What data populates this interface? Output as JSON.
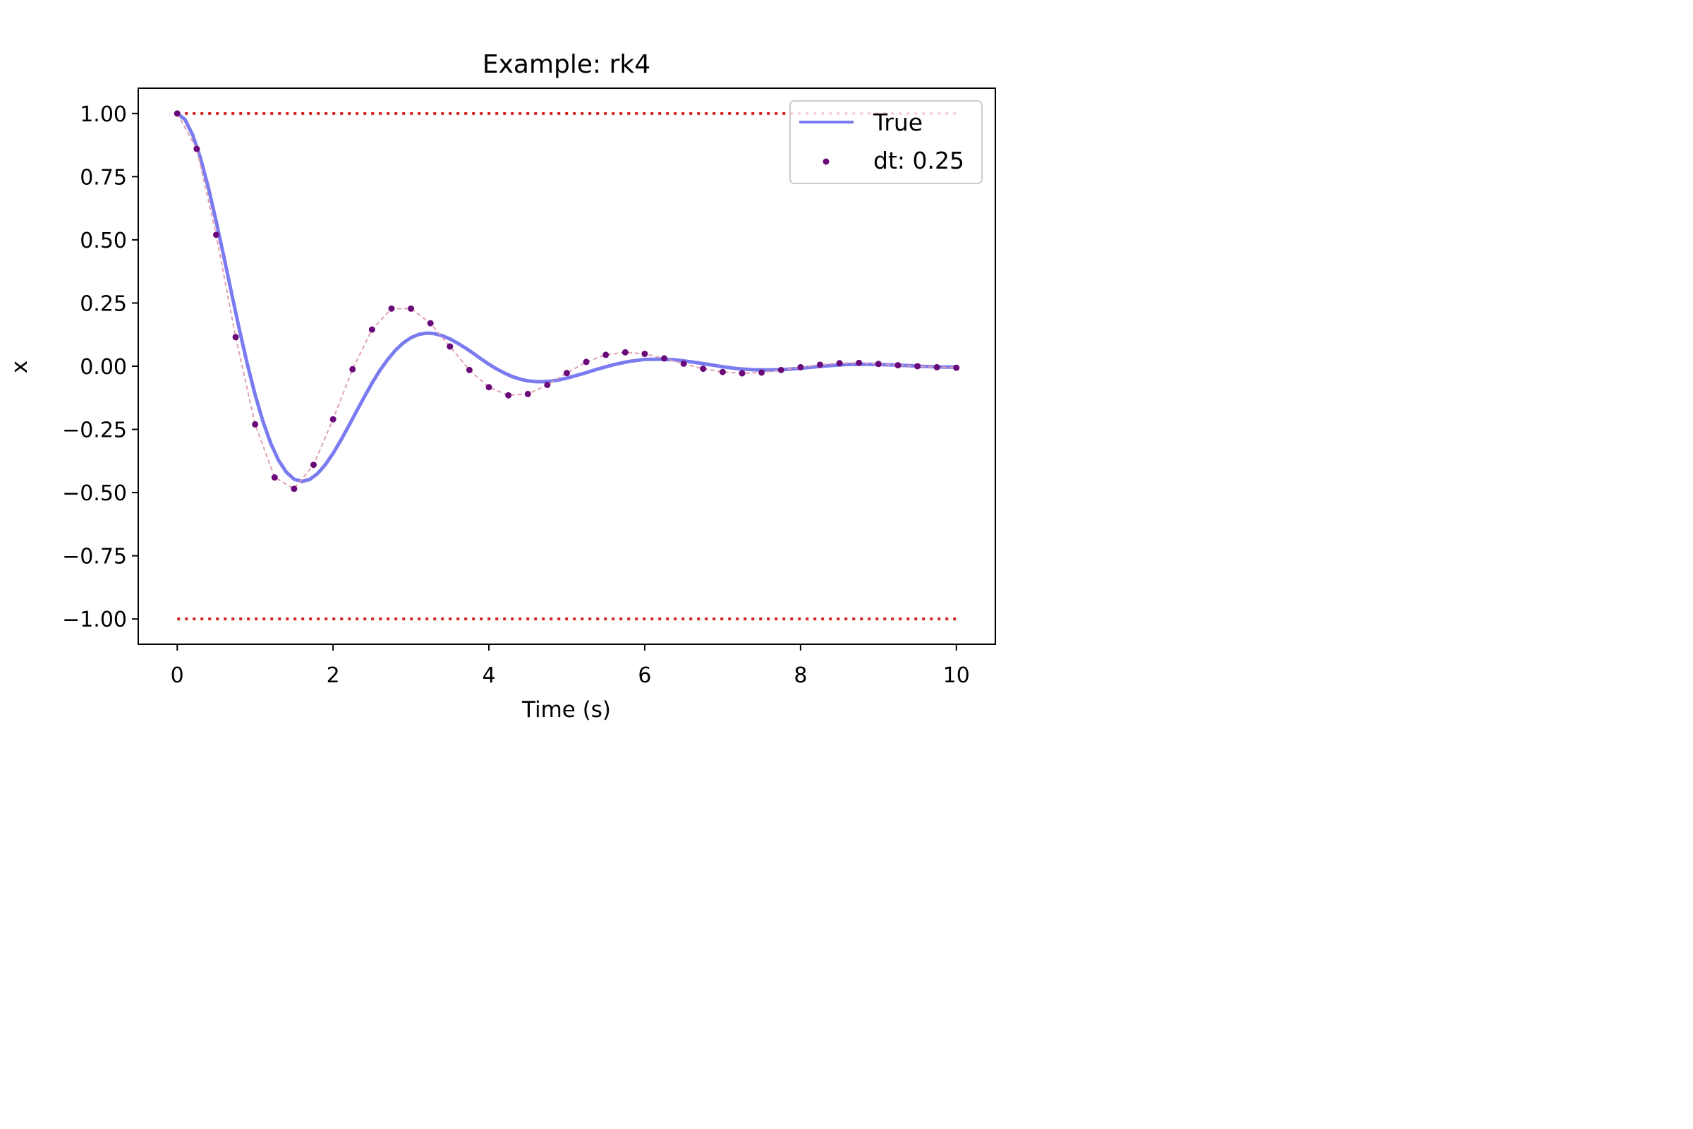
{
  "chart_data": {
    "type": "line",
    "title": "Example: rk4",
    "xlabel": "Time (s)",
    "ylabel": "x",
    "xlim": [
      -0.5,
      10.5
    ],
    "ylim": [
      -1.1,
      1.1
    ],
    "xticks": [
      0,
      2,
      4,
      6,
      8,
      10
    ],
    "xtick_labels": [
      "0",
      "2",
      "4",
      "6",
      "8",
      "10"
    ],
    "yticks": [
      1.0,
      0.75,
      0.5,
      0.25,
      0.0,
      -0.25,
      -0.5,
      -0.75,
      -1.0
    ],
    "ytick_labels": [
      "1.00",
      "0.75",
      "0.50",
      "0.25",
      "0.00",
      "−0.25",
      "−0.50",
      "−0.75",
      "−1.00"
    ],
    "grid": false,
    "legend_position": "upper right",
    "colors": {
      "true_line": "#7b7bf0",
      "samples": "#6a0a7a",
      "bounds": "#d62020",
      "dashed_trace": "#e0a0b0"
    },
    "bounds": [
      1.0,
      -1.0
    ],
    "series": [
      {
        "name": "True",
        "style": "line",
        "x": [
          0.0,
          0.1,
          0.2,
          0.3,
          0.4,
          0.5,
          0.6,
          0.7,
          0.8,
          0.9,
          1.0,
          1.1,
          1.2,
          1.3,
          1.4,
          1.5,
          1.6,
          1.7,
          1.8,
          1.9,
          2.0,
          2.1,
          2.2,
          2.3,
          2.4,
          2.5,
          2.6,
          2.7,
          2.8,
          2.9,
          3.0,
          3.1,
          3.2,
          3.3,
          3.4,
          3.5,
          3.6,
          3.7,
          3.8,
          3.9,
          4.0,
          4.1,
          4.2,
          4.3,
          4.4,
          4.5,
          4.6,
          4.7,
          4.8,
          4.9,
          5.0,
          5.2,
          5.4,
          5.6,
          5.8,
          6.0,
          6.2,
          6.4,
          6.6,
          6.8,
          7.0,
          7.2,
          7.4,
          7.6,
          7.8,
          8.0,
          8.2,
          8.4,
          8.6,
          8.8,
          9.0,
          9.2,
          9.4,
          9.6,
          9.8,
          10.0
        ],
        "y": [
          1.0,
          0.976,
          0.914,
          0.822,
          0.706,
          0.573,
          0.431,
          0.285,
          0.142,
          0.008,
          -0.113,
          -0.218,
          -0.305,
          -0.372,
          -0.419,
          -0.447,
          -0.456,
          -0.448,
          -0.425,
          -0.39,
          -0.345,
          -0.293,
          -0.237,
          -0.179,
          -0.122,
          -0.067,
          -0.017,
          0.026,
          0.063,
          0.092,
          0.113,
          0.126,
          0.131,
          0.129,
          0.121,
          0.108,
          0.091,
          0.072,
          0.051,
          0.029,
          0.008,
          -0.011,
          -0.027,
          -0.041,
          -0.051,
          -0.058,
          -0.061,
          -0.061,
          -0.059,
          -0.054,
          -0.047,
          -0.03,
          -0.011,
          0.006,
          0.019,
          0.027,
          0.028,
          0.025,
          0.017,
          0.008,
          -0.002,
          -0.01,
          -0.014,
          -0.015,
          -0.013,
          -0.008,
          -0.002,
          0.003,
          0.007,
          0.008,
          0.007,
          0.005,
          0.002,
          -0.001,
          -0.003,
          -0.004
        ]
      },
      {
        "name": "dt: 0.25",
        "style": "markers",
        "x": [
          0.0,
          0.25,
          0.5,
          0.75,
          1.0,
          1.25,
          1.5,
          1.75,
          2.0,
          2.25,
          2.5,
          2.75,
          3.0,
          3.25,
          3.5,
          3.75,
          4.0,
          4.25,
          4.5,
          4.75,
          5.0,
          5.25,
          5.5,
          5.75,
          6.0,
          6.25,
          6.5,
          6.75,
          7.0,
          7.25,
          7.5,
          7.75,
          8.0,
          8.25,
          8.5,
          8.75,
          9.0,
          9.25,
          9.5,
          9.75,
          10.0
        ],
        "y": [
          1.0,
          0.86,
          0.52,
          0.115,
          -0.23,
          -0.44,
          -0.485,
          -0.39,
          -0.21,
          -0.012,
          0.145,
          0.228,
          0.228,
          0.17,
          0.078,
          -0.015,
          -0.083,
          -0.115,
          -0.11,
          -0.074,
          -0.027,
          0.017,
          0.045,
          0.055,
          0.049,
          0.031,
          0.01,
          -0.01,
          -0.023,
          -0.028,
          -0.025,
          -0.015,
          -0.004,
          0.006,
          0.012,
          0.013,
          0.009,
          0.004,
          0.0,
          -0.004,
          -0.006
        ]
      }
    ]
  }
}
